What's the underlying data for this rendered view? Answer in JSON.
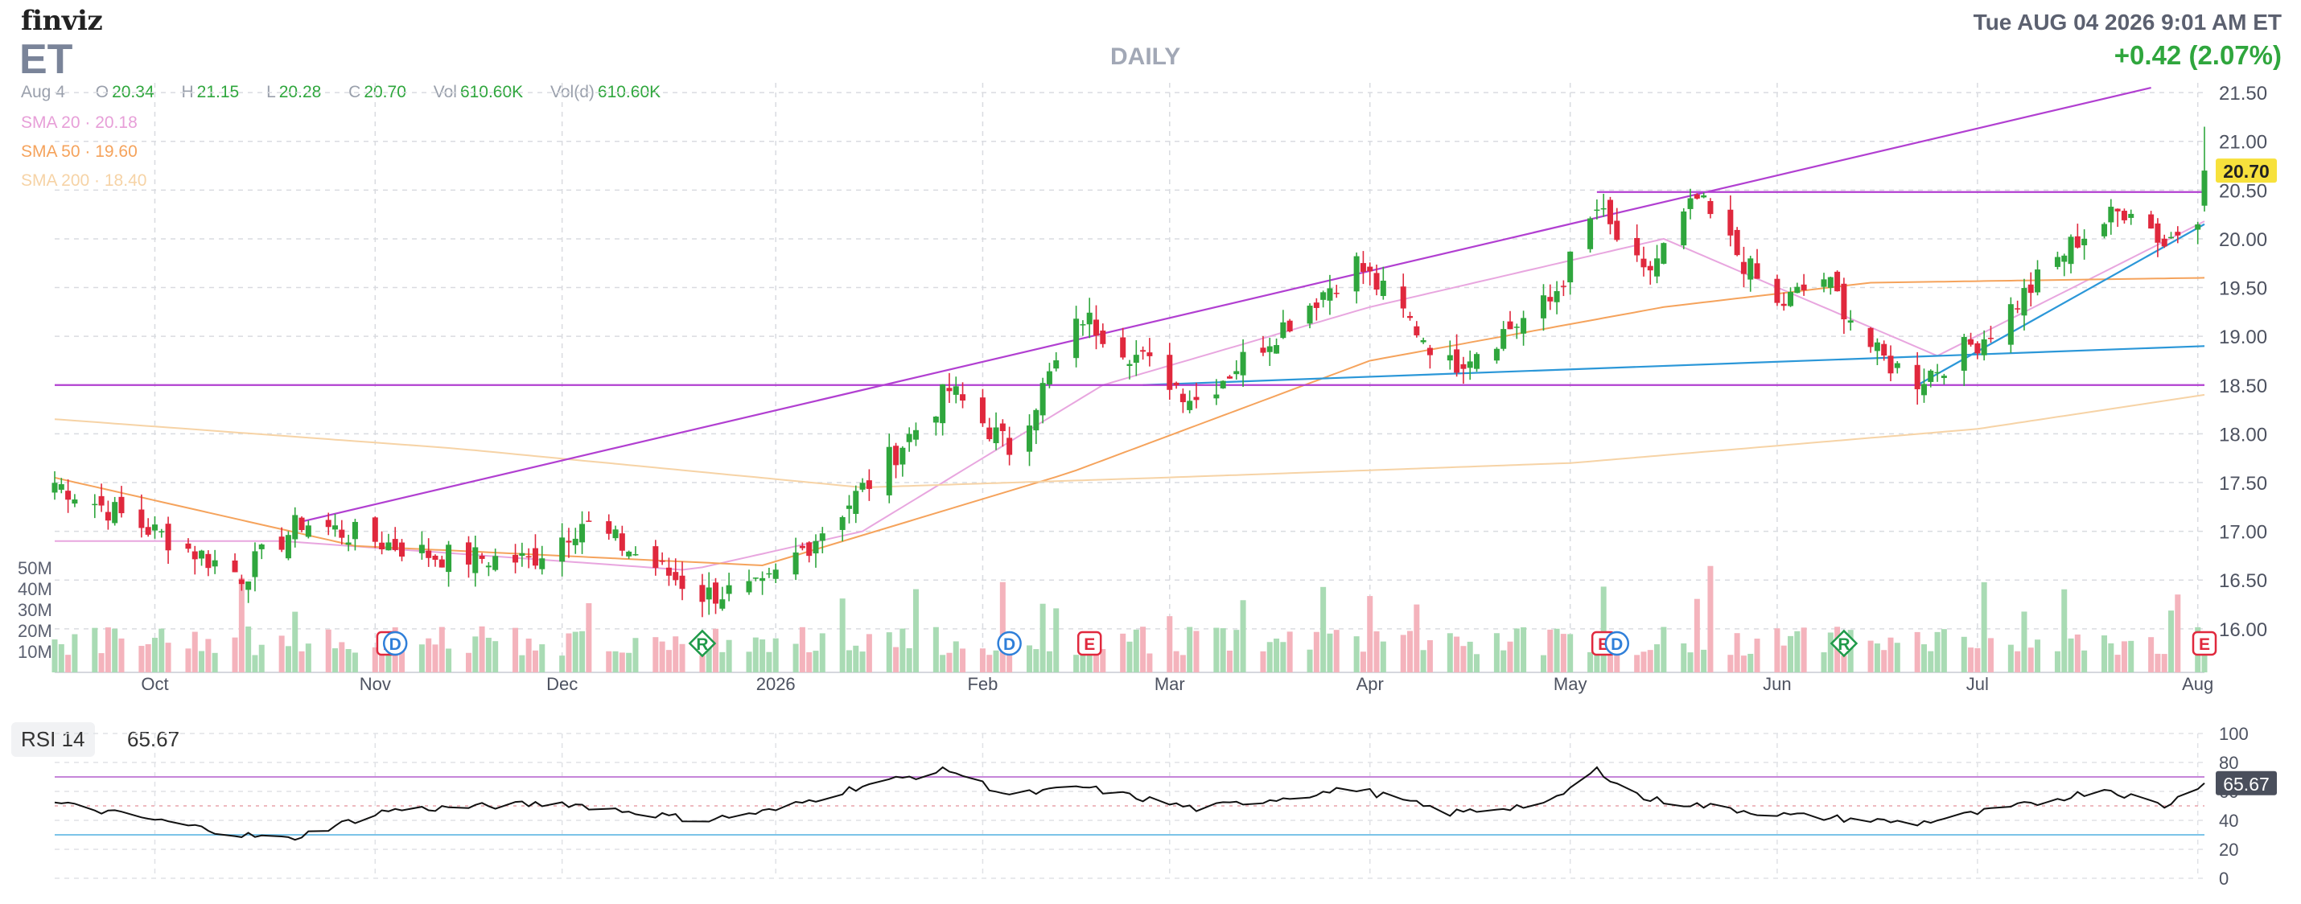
{
  "header": {
    "logo": "finviz",
    "ticker": "ET",
    "timeframe": "DAILY",
    "datetime": "Tue AUG 04 2026 9:01 AM ET",
    "change": "+0.42 (2.07%)"
  },
  "ohlc": {
    "date": "Aug 4",
    "open_label": "O",
    "open": "20.34",
    "high_label": "H",
    "high": "21.15",
    "low_label": "L",
    "low": "20.28",
    "close_label": "C",
    "close": "20.70",
    "vol_label": "Vol",
    "vol": "610.60K",
    "vold_label": "Vol(d)",
    "vold": "610.60K"
  },
  "indicators": {
    "sma20": "SMA 20 · 20.18",
    "sma50": "SMA 50 · 19.60",
    "sma200": "SMA 200 · 18.40"
  },
  "rsi": {
    "label": "RSI 14",
    "value": "65.67"
  },
  "colors": {
    "up": "#2fa63d",
    "down": "#e0283d",
    "up_volume": "#a9dbb4",
    "down_volume": "#f4b3bc",
    "sma20": "#e8a6df",
    "sma50": "#f5a35c",
    "sma200": "#f6d3a6",
    "trendline_purple": "#b13fd1",
    "trendline_blue": "#2b97d8",
    "horizontal_line": "#8f80d4",
    "rsi_line": "#111111",
    "rsi_overbought": "#c685d9",
    "rsi_oversold": "#7cc4e8"
  },
  "chart_data": [
    {
      "type": "candlestick",
      "title": "",
      "x_tick_labels": [
        "Oct",
        "Nov",
        "Dec",
        "2026",
        "Feb",
        "Mar",
        "Apr",
        "May",
        "Jun",
        "Jul",
        "Aug"
      ],
      "y_tick_labels": [
        "16.00",
        "16.50",
        "17.00",
        "17.50",
        "18.00",
        "18.50",
        "19.00",
        "19.50",
        "20.00",
        "20.50",
        "21.00",
        "21.50"
      ],
      "ylim": [
        15.85,
        21.6
      ],
      "last_price_label": "20.70",
      "grid": true,
      "ohlc_keypoints": [
        {
          "date": "2025-09-16",
          "close": 17.5
        },
        {
          "date": "2025-10-14",
          "close": 16.55
        },
        {
          "date": "2025-10-23",
          "close": 17.1
        },
        {
          "date": "2025-11-12",
          "close": 16.75
        },
        {
          "date": "2025-11-26",
          "close": 16.7
        },
        {
          "date": "2025-12-04",
          "close": 17.1
        },
        {
          "date": "2025-12-22",
          "close": 16.35
        },
        {
          "date": "2025-12-31",
          "close": 16.4
        },
        {
          "date": "2026-01-16",
          "close": 17.5
        },
        {
          "date": "2026-01-28",
          "close": 18.45
        },
        {
          "date": "2026-02-06",
          "close": 17.85
        },
        {
          "date": "2026-02-17",
          "close": 19.2
        },
        {
          "date": "2026-03-06",
          "close": 18.35
        },
        {
          "date": "2026-03-30",
          "close": 19.75
        },
        {
          "date": "2026-04-13",
          "close": 18.7
        },
        {
          "date": "2026-04-28",
          "close": 19.35
        },
        {
          "date": "2026-05-05",
          "close": 20.3
        },
        {
          "date": "2026-05-12",
          "close": 19.6
        },
        {
          "date": "2026-05-20",
          "close": 20.4
        },
        {
          "date": "2026-06-01",
          "close": 19.3
        },
        {
          "date": "2026-06-08",
          "close": 19.6
        },
        {
          "date": "2026-06-16",
          "close": 18.8
        },
        {
          "date": "2026-06-22",
          "close": 18.55
        },
        {
          "date": "2026-07-02",
          "close": 19.0
        },
        {
          "date": "2026-07-16",
          "close": 20.0
        },
        {
          "date": "2026-07-24",
          "close": 20.35
        },
        {
          "date": "2026-07-29",
          "close": 19.95
        },
        {
          "date": "2026-08-03",
          "close": 20.28
        },
        {
          "date": "2026-08-04",
          "open": 20.34,
          "high": 21.15,
          "low": 20.28,
          "close": 20.7
        }
      ],
      "series": [
        {
          "name": "SMA 20",
          "value": 20.18
        },
        {
          "name": "SMA 50",
          "value": 19.6
        },
        {
          "name": "SMA 200",
          "value": 18.4
        }
      ],
      "sma_keypoints": {
        "sma20": [
          [
            "2025-10-20",
            16.9
          ],
          [
            "2025-12-20",
            16.6
          ],
          [
            "2026-01-15",
            17.0
          ],
          [
            "2026-02-20",
            18.5
          ],
          [
            "2026-04-01",
            19.3
          ],
          [
            "2026-05-15",
            20.0
          ],
          [
            "2026-06-25",
            18.8
          ],
          [
            "2026-08-04",
            20.18
          ]
        ],
        "sma50": [
          [
            "2025-09-16",
            17.55
          ],
          [
            "2025-10-31",
            16.85
          ],
          [
            "2025-12-31",
            16.65
          ],
          [
            "2026-02-15",
            17.6
          ],
          [
            "2026-04-01",
            18.75
          ],
          [
            "2026-05-15",
            19.3
          ],
          [
            "2026-06-15",
            19.55
          ],
          [
            "2026-08-04",
            19.6
          ]
        ],
        "sma200": [
          [
            "2025-09-16",
            18.15
          ],
          [
            "2025-11-15",
            17.85
          ],
          [
            "2026-01-15",
            17.45
          ],
          [
            "2026-03-01",
            17.55
          ],
          [
            "2026-05-01",
            17.7
          ],
          [
            "2026-07-01",
            18.05
          ],
          [
            "2026-08-04",
            18.4
          ]
        ]
      },
      "trendlines": [
        {
          "color": "purple",
          "from": [
            "2025-10-23",
            17.1
          ],
          "to": [
            "2026-07-27",
            21.55
          ]
        },
        {
          "color": "purple",
          "from": [
            "2026-05-05",
            20.48
          ],
          "to": [
            "2026-08-04",
            20.48
          ]
        },
        {
          "color": "blue",
          "from": [
            "2026-02-26",
            18.5
          ],
          "to": [
            "2026-08-04",
            18.9
          ]
        },
        {
          "color": "blue",
          "from": [
            "2026-06-22",
            18.5
          ],
          "to": [
            "2026-08-04",
            20.15
          ]
        },
        {
          "color": "purple",
          "from": [
            "2025-09-16",
            18.5
          ],
          "to": [
            "2026-08-04",
            18.5
          ]
        }
      ],
      "volume_axis_labels": [
        "50M",
        "40M",
        "30M",
        "20M",
        "10M"
      ],
      "event_markers": [
        {
          "date": "2025-11-05",
          "label": "E"
        },
        {
          "date": "2025-11-06",
          "label": "D"
        },
        {
          "date": "2025-12-22",
          "label": "R"
        },
        {
          "date": "2026-02-06",
          "label": "D"
        },
        {
          "date": "2026-02-18",
          "label": "E"
        },
        {
          "date": "2026-05-06",
          "label": "E"
        },
        {
          "date": "2026-05-08",
          "label": "D"
        },
        {
          "date": "2026-06-11",
          "label": "R"
        },
        {
          "date": "2026-08-04",
          "label": "E"
        }
      ]
    },
    {
      "type": "line",
      "title": "",
      "y_tick_labels": [
        "100",
        "80",
        "60",
        "40",
        "20",
        "0"
      ],
      "ylim": [
        0,
        100
      ],
      "overbought": 70,
      "oversold": 30,
      "last_value_label": "65.67",
      "rsi_keypoints": [
        [
          "2025-09-16",
          52
        ],
        [
          "2025-10-14",
          30
        ],
        [
          "2025-10-21",
          27
        ],
        [
          "2025-11-05",
          47
        ],
        [
          "2025-12-01",
          52
        ],
        [
          "2025-12-22",
          40
        ],
        [
          "2026-01-02",
          47
        ],
        [
          "2026-01-15",
          64
        ],
        [
          "2026-01-28",
          75
        ],
        [
          "2026-02-06",
          57
        ],
        [
          "2026-02-17",
          63
        ],
        [
          "2026-03-06",
          48
        ],
        [
          "2026-03-30",
          62
        ],
        [
          "2026-04-13",
          45
        ],
        [
          "2026-04-28",
          52
        ],
        [
          "2026-05-05",
          75
        ],
        [
          "2026-05-12",
          55
        ],
        [
          "2026-06-01",
          44
        ],
        [
          "2026-06-22",
          38
        ],
        [
          "2026-07-10",
          52
        ],
        [
          "2026-07-20",
          62
        ],
        [
          "2026-07-29",
          50
        ],
        [
          "2026-08-04",
          65.67
        ]
      ]
    }
  ]
}
